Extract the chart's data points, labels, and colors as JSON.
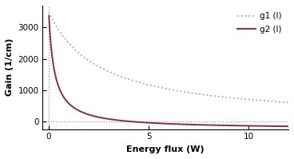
{
  "title": "",
  "xlabel": "Energy flux (W)",
  "ylabel": "Gain (1/cm)",
  "xlim": [
    -0.3,
    12
  ],
  "ylim": [
    -250,
    3700
  ],
  "yticks": [
    0,
    1000,
    2000,
    3000
  ],
  "xticks": [
    0,
    5,
    10
  ],
  "g1_color": "#aaaaaa",
  "g2_color": "#8b3030",
  "g0_1": 3500,
  "Is1": 2.5,
  "g0_2": 3700,
  "Is2": 0.28,
  "C2": 120,
  "legend_labels": [
    "g1 (I)",
    "g2 (I)"
  ],
  "background_color": "#ffffff",
  "vline_x": 0.0,
  "hline_y": 0.0,
  "x_start": 0.01
}
